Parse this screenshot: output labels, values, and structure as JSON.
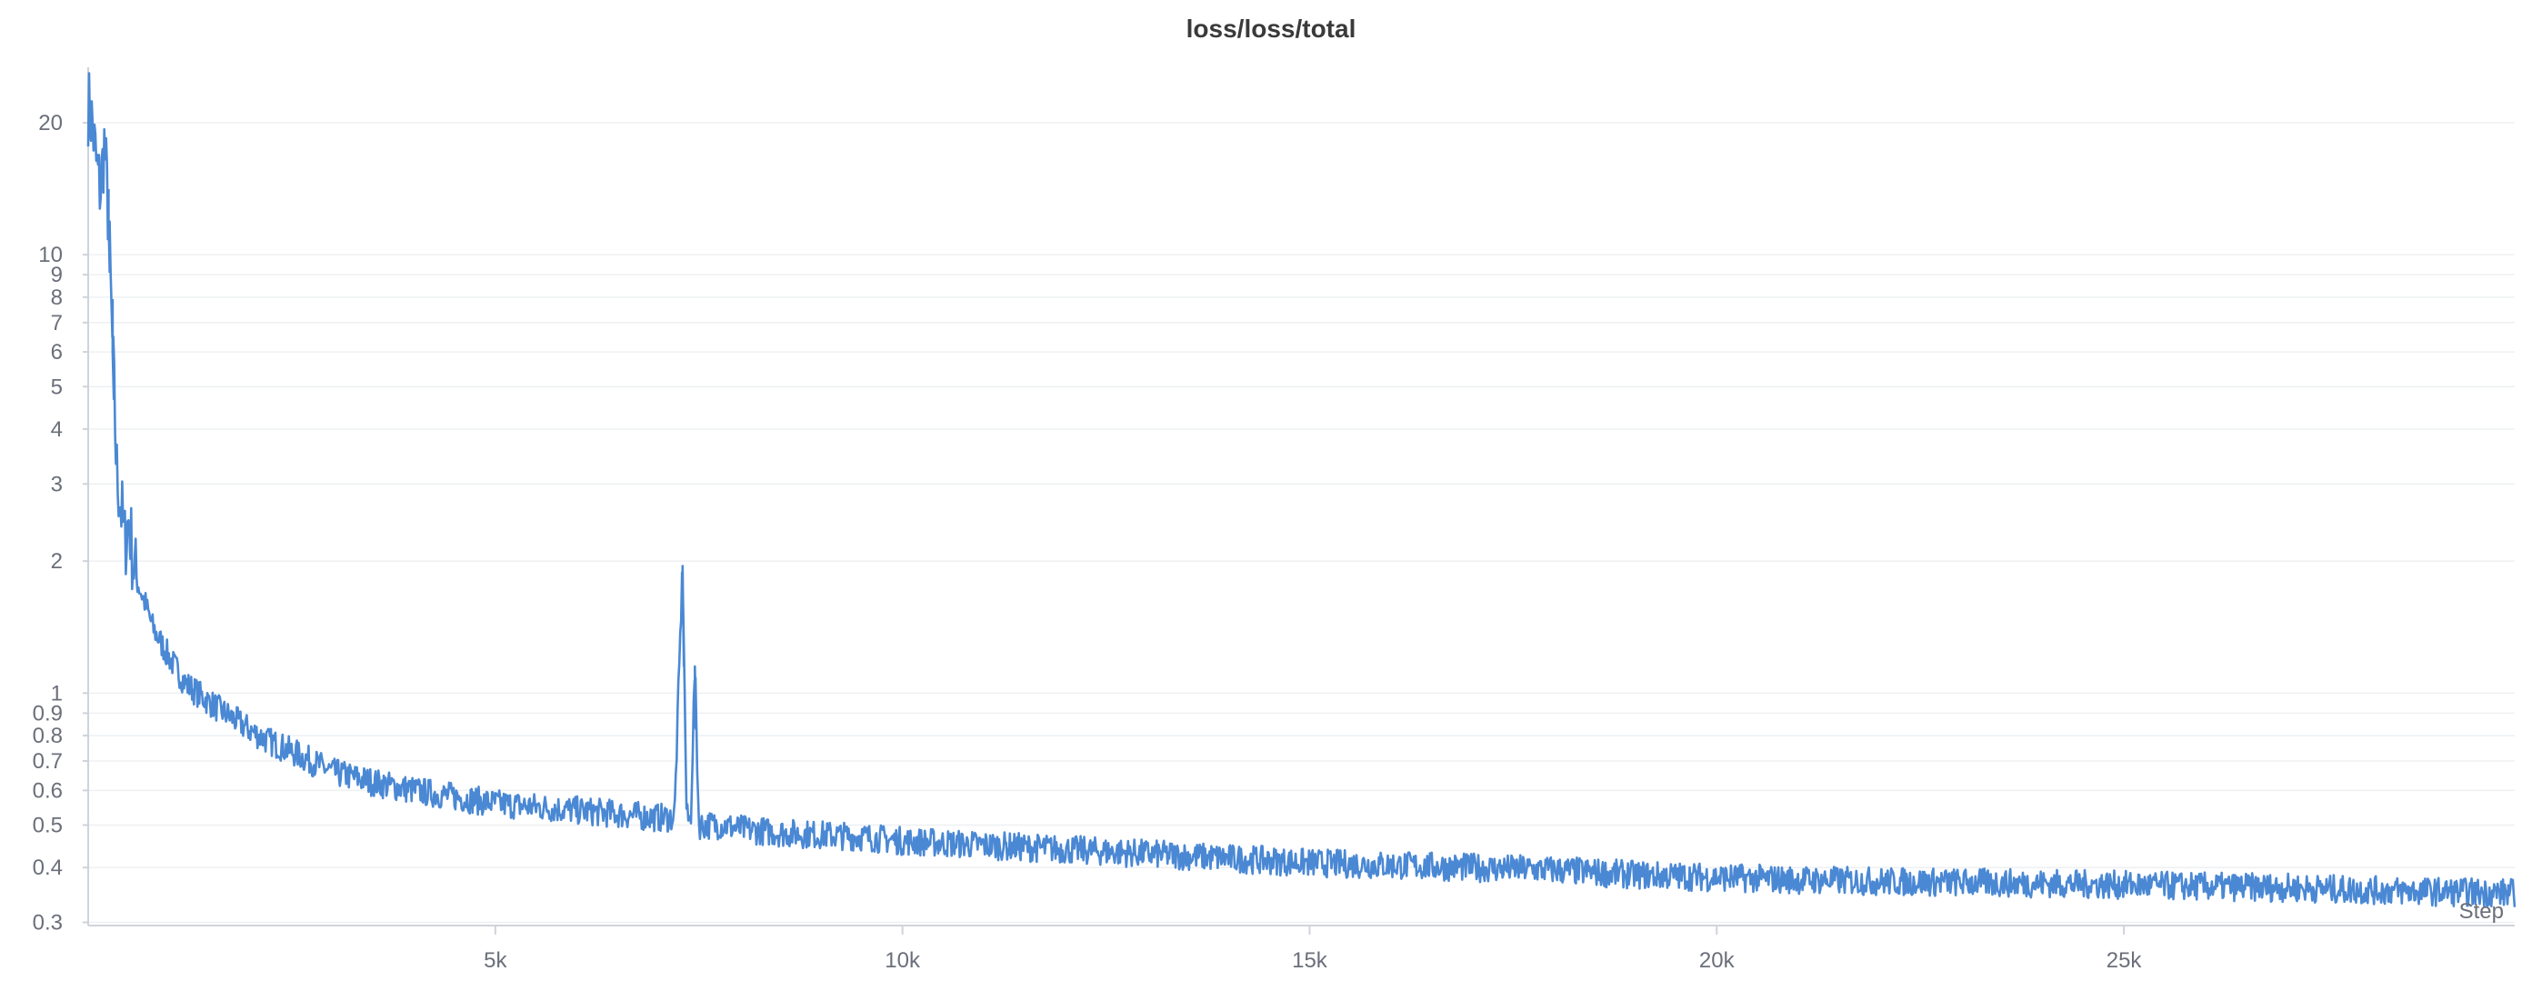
{
  "chart_data": {
    "type": "line",
    "title": "loss/loss/total",
    "xlabel": "Step",
    "ylabel": "",
    "y_scale": "log",
    "xlim": [
      0,
      29800
    ],
    "ylim": [
      0.295,
      26
    ],
    "x_ticks": [
      {
        "value": 5000,
        "label": "5k"
      },
      {
        "value": 10000,
        "label": "10k"
      },
      {
        "value": 15000,
        "label": "15k"
      },
      {
        "value": 20000,
        "label": "20k"
      },
      {
        "value": 25000,
        "label": "25k"
      }
    ],
    "y_ticks": [
      {
        "value": 0.3,
        "label": "0.3"
      },
      {
        "value": 0.4,
        "label": "0.4"
      },
      {
        "value": 0.5,
        "label": "0.5"
      },
      {
        "value": 0.6,
        "label": "0.6"
      },
      {
        "value": 0.7,
        "label": "0.7"
      },
      {
        "value": 0.8,
        "label": "0.8"
      },
      {
        "value": 0.9,
        "label": "0.9"
      },
      {
        "value": 1,
        "label": "1"
      },
      {
        "value": 2,
        "label": "2"
      },
      {
        "value": 3,
        "label": "3"
      },
      {
        "value": 4,
        "label": "4"
      },
      {
        "value": 5,
        "label": "5"
      },
      {
        "value": 6,
        "label": "6"
      },
      {
        "value": 7,
        "label": "7"
      },
      {
        "value": 8,
        "label": "8"
      },
      {
        "value": 9,
        "label": "9"
      },
      {
        "value": 10,
        "label": "10"
      },
      {
        "value": 20,
        "label": "20"
      }
    ],
    "grid": true,
    "legend": "none",
    "series": [
      {
        "color": "#4a88d4",
        "x": [
          0,
          50,
          100,
          150,
          200,
          250,
          300,
          350,
          400,
          450,
          500,
          550,
          600,
          700,
          800,
          1000,
          1200,
          1400,
          1600,
          1800,
          2000,
          2200,
          2400,
          2600,
          2800,
          3000,
          3300,
          3600,
          4000,
          4500,
          5000,
          5500,
          6000,
          6500,
          7000,
          7200,
          7300,
          7350,
          7400,
          7450,
          7500,
          7600,
          7800,
          8000,
          8500,
          9000,
          9500,
          10000,
          11000,
          12000,
          13000,
          14000,
          15000,
          16000,
          17000,
          18000,
          19000,
          20000,
          21000,
          22000,
          23000,
          24000,
          25000,
          26000,
          27000,
          28000,
          29000,
          29800
        ],
        "values": [
          22,
          20,
          16,
          14,
          18,
          12,
          6,
          3.2,
          2.7,
          2.2,
          2.5,
          2.0,
          1.8,
          1.6,
          1.4,
          1.2,
          1.05,
          0.98,
          0.92,
          0.87,
          0.82,
          0.78,
          0.75,
          0.72,
          0.69,
          0.66,
          0.64,
          0.62,
          0.6,
          0.58,
          0.56,
          0.55,
          0.54,
          0.53,
          0.52,
          0.52,
          1.95,
          0.52,
          0.51,
          1.15,
          0.5,
          0.5,
          0.5,
          0.49,
          0.48,
          0.475,
          0.47,
          0.46,
          0.45,
          0.44,
          0.43,
          0.42,
          0.41,
          0.405,
          0.4,
          0.395,
          0.385,
          0.38,
          0.375,
          0.372,
          0.37,
          0.368,
          0.365,
          0.362,
          0.36,
          0.355,
          0.352,
          0.35
        ]
      }
    ]
  }
}
